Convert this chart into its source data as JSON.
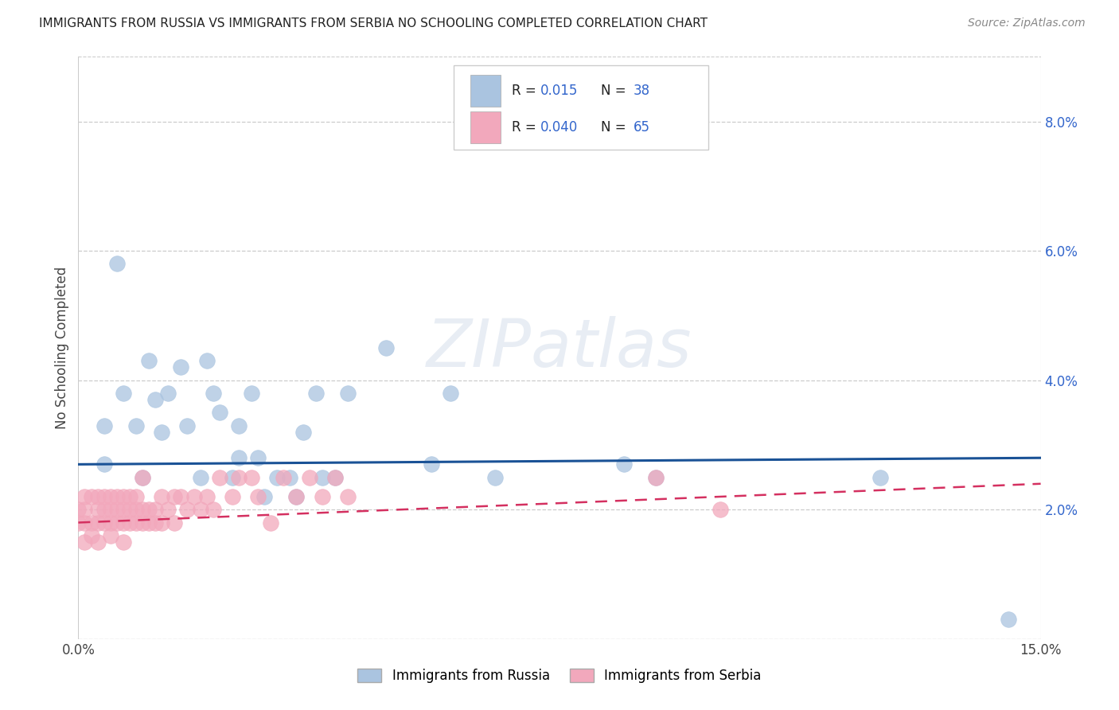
{
  "title": "IMMIGRANTS FROM RUSSIA VS IMMIGRANTS FROM SERBIA NO SCHOOLING COMPLETED CORRELATION CHART",
  "source": "Source: ZipAtlas.com",
  "ylabel": "No Schooling Completed",
  "xlim": [
    0.0,
    0.15
  ],
  "ylim": [
    0.0,
    0.09
  ],
  "xticks": [
    0.0,
    0.05,
    0.1,
    0.15
  ],
  "yticks": [
    0.0,
    0.02,
    0.04,
    0.06,
    0.08
  ],
  "xtick_labels": [
    "0.0%",
    "",
    "",
    "15.0%"
  ],
  "ytick_labels_right": [
    "",
    "2.0%",
    "4.0%",
    "6.0%",
    "8.0%"
  ],
  "russia_color": "#aac4e0",
  "serbia_color": "#f2a8bc",
  "russia_line_color": "#1a5296",
  "serbia_line_color": "#d43060",
  "watermark": "ZIPatlas",
  "russia_x": [
    0.004,
    0.004,
    0.006,
    0.007,
    0.009,
    0.01,
    0.011,
    0.012,
    0.013,
    0.014,
    0.016,
    0.017,
    0.019,
    0.02,
    0.021,
    0.022,
    0.024,
    0.025,
    0.025,
    0.027,
    0.028,
    0.029,
    0.031,
    0.033,
    0.034,
    0.035,
    0.037,
    0.038,
    0.04,
    0.042,
    0.048,
    0.055,
    0.058,
    0.065,
    0.085,
    0.09,
    0.125,
    0.145
  ],
  "russia_y": [
    0.027,
    0.033,
    0.058,
    0.038,
    0.033,
    0.025,
    0.043,
    0.037,
    0.032,
    0.038,
    0.042,
    0.033,
    0.025,
    0.043,
    0.038,
    0.035,
    0.025,
    0.033,
    0.028,
    0.038,
    0.028,
    0.022,
    0.025,
    0.025,
    0.022,
    0.032,
    0.038,
    0.025,
    0.025,
    0.038,
    0.045,
    0.027,
    0.038,
    0.025,
    0.027,
    0.025,
    0.025,
    0.003
  ],
  "serbia_x": [
    0.0,
    0.0,
    0.001,
    0.001,
    0.001,
    0.001,
    0.002,
    0.002,
    0.002,
    0.003,
    0.003,
    0.003,
    0.003,
    0.004,
    0.004,
    0.004,
    0.005,
    0.005,
    0.005,
    0.005,
    0.006,
    0.006,
    0.006,
    0.007,
    0.007,
    0.007,
    0.007,
    0.008,
    0.008,
    0.008,
    0.009,
    0.009,
    0.009,
    0.01,
    0.01,
    0.01,
    0.011,
    0.011,
    0.012,
    0.012,
    0.013,
    0.013,
    0.014,
    0.015,
    0.015,
    0.016,
    0.017,
    0.018,
    0.019,
    0.02,
    0.021,
    0.022,
    0.024,
    0.025,
    0.027,
    0.028,
    0.03,
    0.032,
    0.034,
    0.036,
    0.038,
    0.04,
    0.042,
    0.09,
    0.1
  ],
  "serbia_y": [
    0.018,
    0.02,
    0.018,
    0.02,
    0.022,
    0.015,
    0.018,
    0.022,
    0.016,
    0.018,
    0.02,
    0.022,
    0.015,
    0.018,
    0.02,
    0.022,
    0.018,
    0.02,
    0.022,
    0.016,
    0.018,
    0.02,
    0.022,
    0.018,
    0.02,
    0.022,
    0.015,
    0.018,
    0.02,
    0.022,
    0.018,
    0.02,
    0.022,
    0.018,
    0.02,
    0.025,
    0.018,
    0.02,
    0.018,
    0.02,
    0.022,
    0.018,
    0.02,
    0.018,
    0.022,
    0.022,
    0.02,
    0.022,
    0.02,
    0.022,
    0.02,
    0.025,
    0.022,
    0.025,
    0.025,
    0.022,
    0.018,
    0.025,
    0.022,
    0.025,
    0.022,
    0.025,
    0.022,
    0.025,
    0.02
  ],
  "russia_trend_x": [
    0.0,
    0.15
  ],
  "russia_trend_y": [
    0.027,
    0.028
  ],
  "serbia_trend_x": [
    0.0,
    0.15
  ],
  "serbia_trend_y": [
    0.018,
    0.024
  ]
}
